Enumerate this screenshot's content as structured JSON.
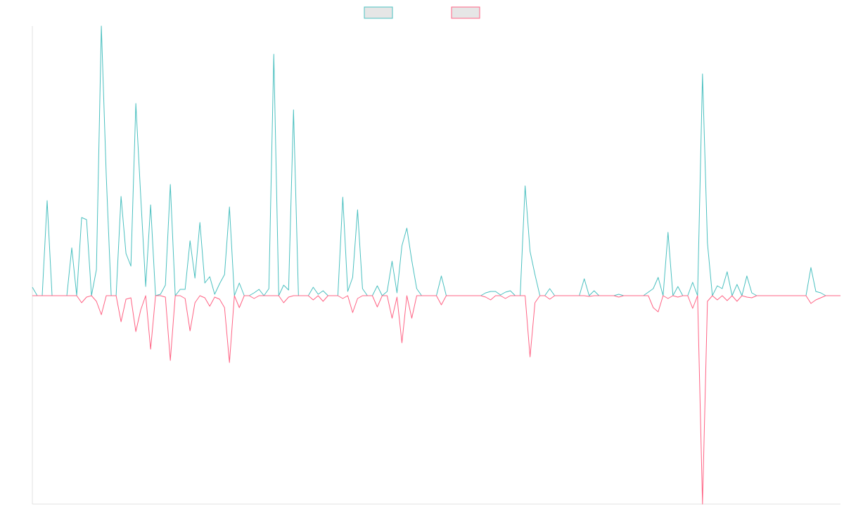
{
  "chart_data": {
    "type": "line",
    "ylim": [
      -296,
      383
    ],
    "grid": false,
    "legend": "top",
    "series": [
      {
        "color": "#4bc0c0",
        "values": [
          12,
          0,
          0,
          135,
          0,
          0,
          0,
          0,
          68,
          0,
          111,
          108,
          0,
          37,
          383,
          170,
          0,
          0,
          141,
          60,
          42,
          273,
          140,
          13,
          129,
          0,
          2,
          15,
          158,
          0,
          9,
          9,
          78,
          25,
          104,
          18,
          27,
          2,
          17,
          30,
          126,
          0,
          18,
          0,
          0,
          4,
          9,
          0,
          10,
          343,
          0,
          15,
          8,
          264,
          0,
          0,
          0,
          12,
          2,
          7,
          0,
          0,
          0,
          140,
          6,
          26,
          122,
          10,
          0,
          0,
          14,
          0,
          6,
          49,
          4,
          71,
          96,
          50,
          10,
          0,
          0,
          0,
          0,
          28,
          0,
          0,
          0,
          0,
          0,
          0,
          0,
          0,
          4,
          6,
          6,
          1,
          5,
          7,
          0,
          0,
          156,
          63,
          30,
          0,
          0,
          10,
          0,
          0,
          0,
          0,
          0,
          0,
          24,
          0,
          7,
          0,
          0,
          0,
          0,
          2,
          0,
          0,
          0,
          0,
          0,
          5,
          10,
          26,
          0,
          90,
          0,
          13,
          0,
          0,
          19,
          0,
          315,
          75,
          0,
          14,
          10,
          34,
          0,
          16,
          0,
          28,
          4,
          0,
          0,
          0,
          0,
          0,
          0,
          0,
          0,
          0,
          0,
          0,
          40,
          6,
          4,
          0,
          0,
          0,
          0
        ]
      },
      {
        "color": "#ff6384",
        "values": [
          0,
          0,
          0,
          0,
          0,
          0,
          0,
          0,
          0,
          0,
          -10,
          -2,
          0,
          -8,
          -27,
          0,
          0,
          0,
          -37,
          -5,
          -3,
          -51,
          -20,
          0,
          -76,
          0,
          0,
          -2,
          -92,
          0,
          0,
          -4,
          -50,
          -10,
          0,
          -3,
          -15,
          -2,
          -5,
          -17,
          -95,
          0,
          -17,
          0,
          0,
          -4,
          0,
          0,
          0,
          0,
          0,
          -10,
          -2,
          0,
          0,
          0,
          0,
          -6,
          0,
          -8,
          0,
          0,
          0,
          -4,
          0,
          -24,
          -4,
          0,
          0,
          0,
          -16,
          0,
          0,
          -32,
          -2,
          -67,
          0,
          -32,
          0,
          0,
          0,
          0,
          0,
          -13,
          0,
          0,
          0,
          0,
          0,
          0,
          0,
          0,
          -2,
          -6,
          0,
          0,
          -4,
          0,
          0,
          0,
          0,
          -87,
          -10,
          0,
          0,
          -5,
          0,
          0,
          0,
          0,
          0,
          0,
          0,
          -1,
          0,
          0,
          0,
          0,
          0,
          -2,
          0,
          0,
          0,
          0,
          0,
          0,
          -17,
          -23,
          0,
          -4,
          0,
          -2,
          0,
          0,
          -18,
          0,
          -296,
          -8,
          0,
          -6,
          0,
          -7,
          0,
          -8,
          0,
          -2,
          -3,
          0,
          0,
          0,
          0,
          0,
          0,
          0,
          0,
          0,
          0,
          0,
          -11,
          -6,
          -3,
          0,
          0,
          0,
          0
        ]
      }
    ]
  }
}
